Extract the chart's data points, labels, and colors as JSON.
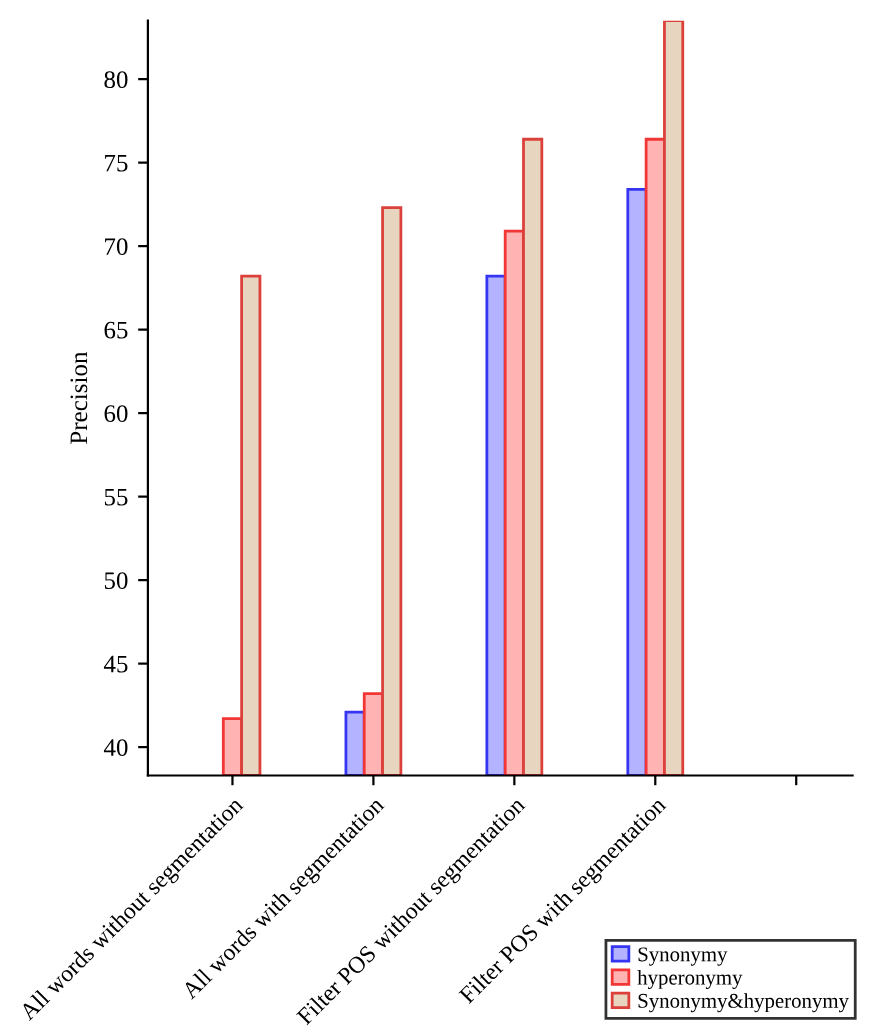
{
  "chart_data": {
    "type": "bar",
    "ylabel": "Precision",
    "categories": [
      "All words without segmentation",
      "All words with segmentation",
      "Filter POS without segmentation",
      "Filter POS with segmentation",
      null
    ],
    "series": [
      {
        "name": "Synonymy",
        "color": "#b3b3ff",
        "values": [
          null,
          42.1,
          68.2,
          73.4,
          null
        ]
      },
      {
        "name": "hyperonymy",
        "color": "#ffb3b3",
        "values": [
          41.7,
          43.2,
          70.9,
          76.4,
          null
        ]
      },
      {
        "name": "Synonymy&hyperonymy",
        "color": "#e8d5c0",
        "values": [
          68.2,
          72.3,
          76.4,
          83.5,
          null
        ]
      }
    ],
    "ylim": [
      38.3,
      83.5
    ],
    "yticks": [
      40,
      45,
      50,
      55,
      60,
      65,
      70,
      75,
      80
    ],
    "grid": false,
    "legend": "bottom right"
  }
}
